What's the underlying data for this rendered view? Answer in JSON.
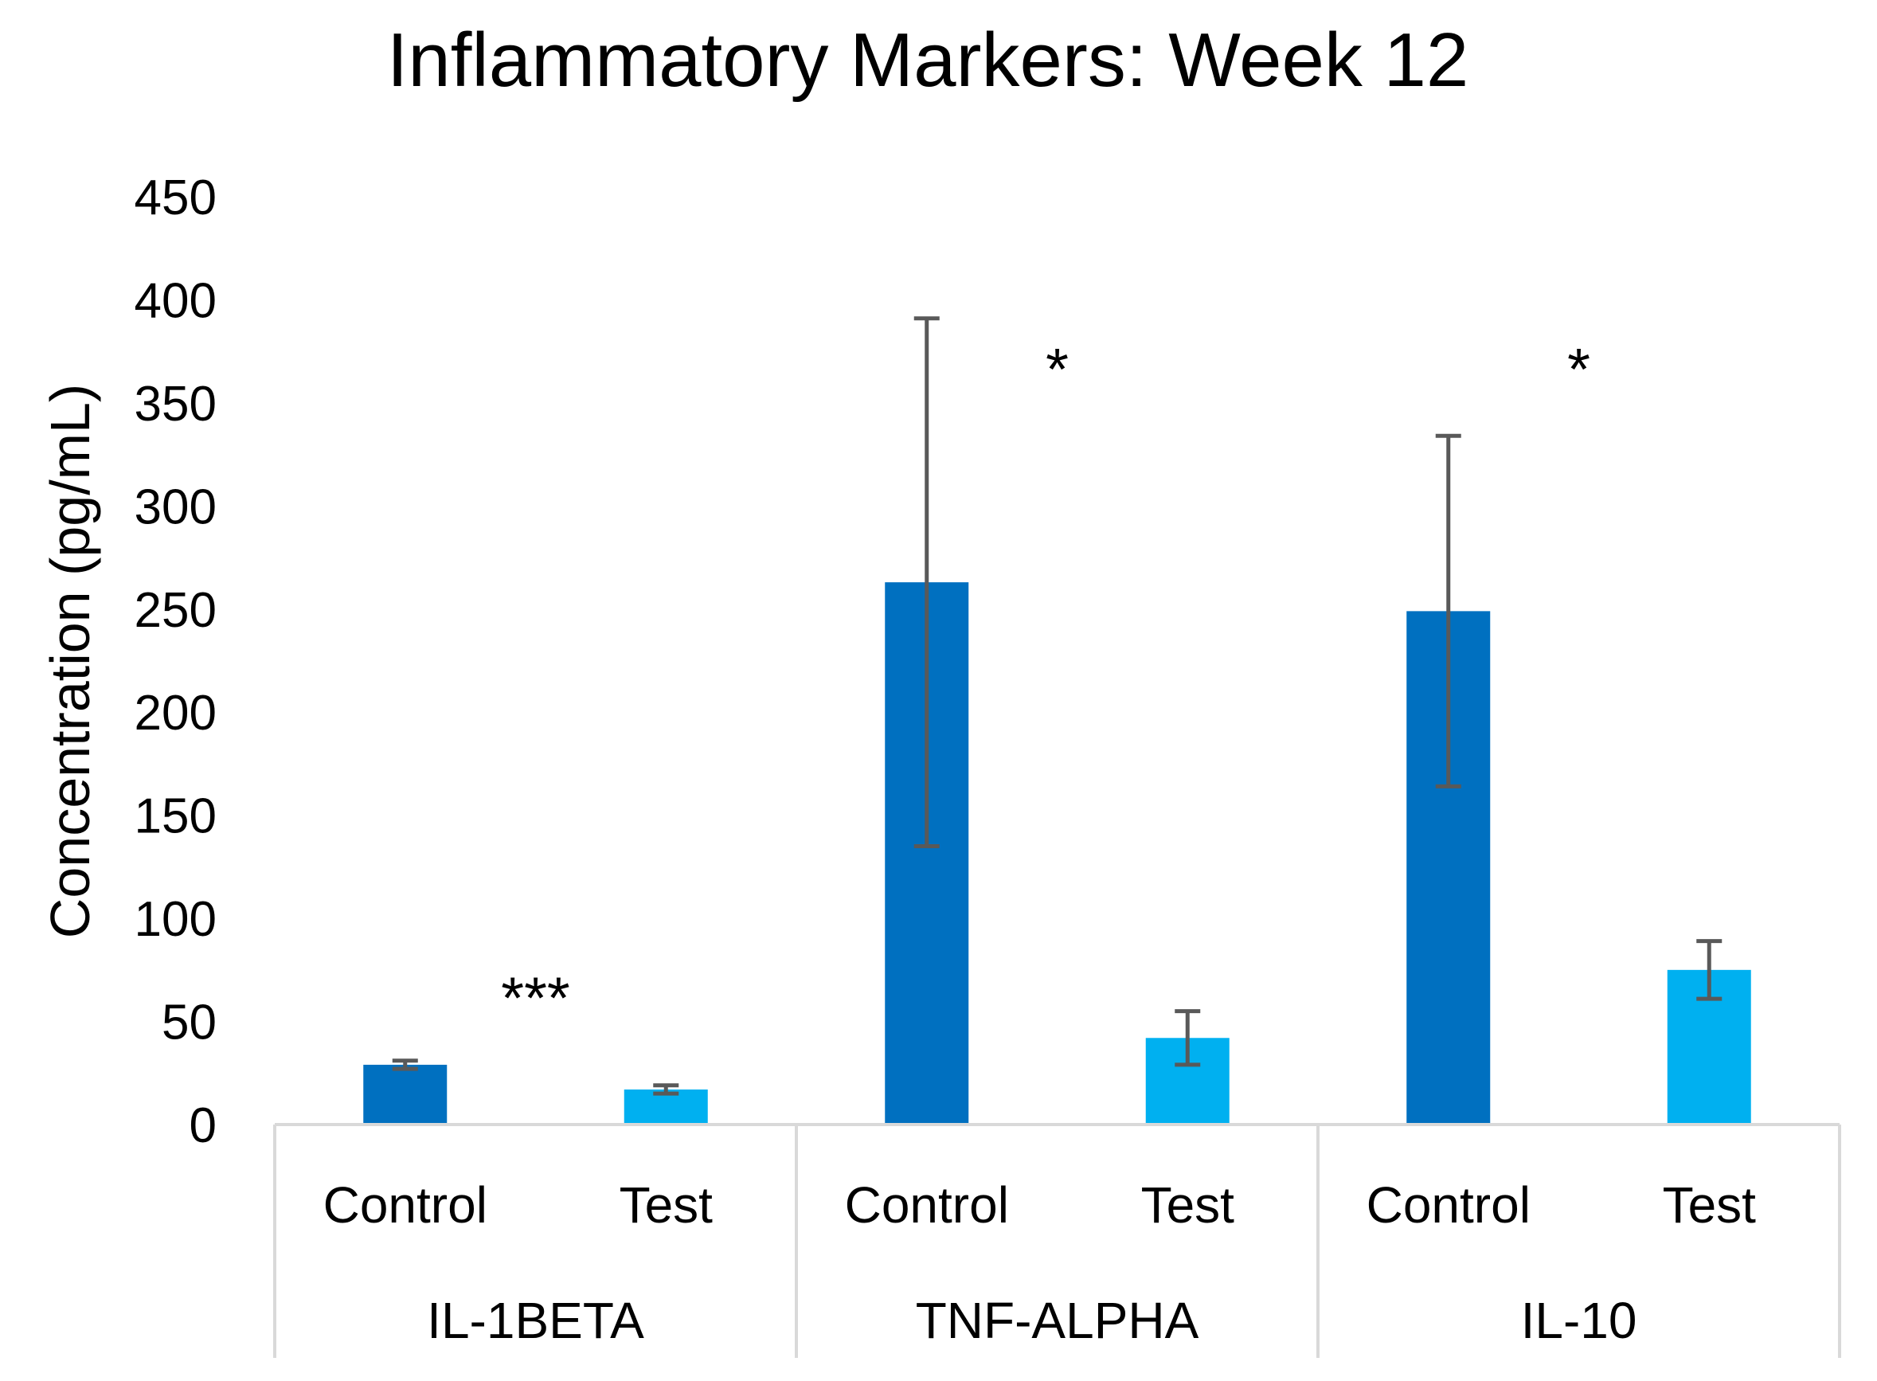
{
  "chart_data": {
    "type": "bar",
    "title": "Inflammatory Markers: Week 12",
    "xlabel": "",
    "ylabel": "Concentration (pg/mL)",
    "ylim": [
      0,
      450
    ],
    "yticks": [
      0,
      50,
      100,
      150,
      200,
      250,
      300,
      350,
      400,
      450
    ],
    "grid": false,
    "groups": [
      {
        "name": "IL-1BETA",
        "significance": "***",
        "bars": [
          {
            "label": "Control",
            "value": 29,
            "error": 2,
            "color": "#0070C0"
          },
          {
            "label": "Test",
            "value": 17,
            "error": 2,
            "color": "#00B0F0"
          }
        ]
      },
      {
        "name": "TNF-ALPHA",
        "significance": "*",
        "bars": [
          {
            "label": "Control",
            "value": 263,
            "error": 128,
            "color": "#0070C0"
          },
          {
            "label": "Test",
            "value": 42,
            "error": 13,
            "color": "#00B0F0"
          }
        ]
      },
      {
        "name": "IL-10",
        "significance": "*",
        "bars": [
          {
            "label": "Control",
            "value": 249,
            "error": 85,
            "color": "#0070C0"
          },
          {
            "label": "Test",
            "value": 75,
            "error": 14,
            "color": "#00B0F0"
          }
        ]
      }
    ],
    "colors": {
      "control": "#0070C0",
      "test": "#00B0F0",
      "error_bar": "#595959",
      "axis": "#D9D9D9"
    }
  }
}
